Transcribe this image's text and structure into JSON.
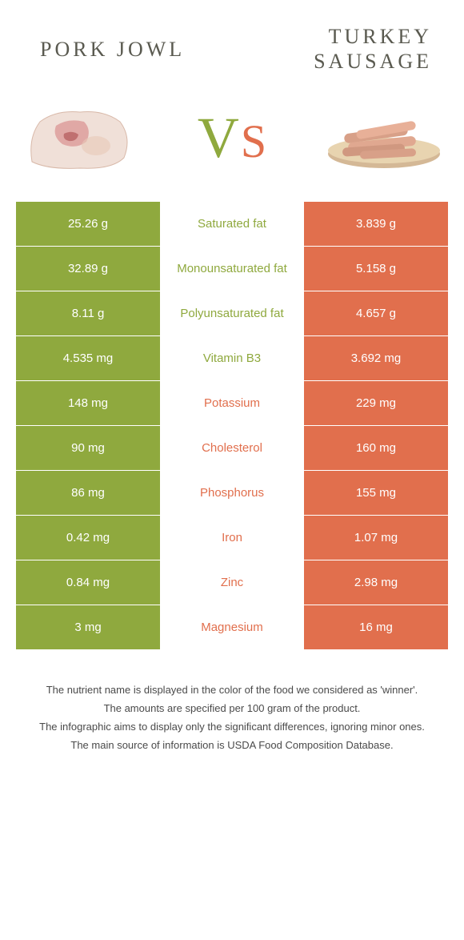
{
  "colors": {
    "green": "#8fa93e",
    "orange": "#e16f4d",
    "title": "#5a5a50",
    "footer_text": "#4a4a4a",
    "background": "#ffffff"
  },
  "header": {
    "left_title": "PORK JOWL",
    "right_title_line1": "TURKEY",
    "right_title_line2": "SAUSAGE",
    "vs_v": "V",
    "vs_s": "S"
  },
  "images": {
    "left_alt": "pork-jowl-image",
    "right_alt": "turkey-sausage-image"
  },
  "rows": [
    {
      "nutrient": "Saturated fat",
      "left": "25.26 g",
      "right": "3.839 g",
      "winner": "left"
    },
    {
      "nutrient": "Monounsaturated fat",
      "left": "32.89 g",
      "right": "5.158 g",
      "winner": "left"
    },
    {
      "nutrient": "Polyunsaturated fat",
      "left": "8.11 g",
      "right": "4.657 g",
      "winner": "left"
    },
    {
      "nutrient": "Vitamin B3",
      "left": "4.535 mg",
      "right": "3.692 mg",
      "winner": "left"
    },
    {
      "nutrient": "Potassium",
      "left": "148 mg",
      "right": "229 mg",
      "winner": "right"
    },
    {
      "nutrient": "Cholesterol",
      "left": "90 mg",
      "right": "160 mg",
      "winner": "right"
    },
    {
      "nutrient": "Phosphorus",
      "left": "86 mg",
      "right": "155 mg",
      "winner": "right"
    },
    {
      "nutrient": "Iron",
      "left": "0.42 mg",
      "right": "1.07 mg",
      "winner": "right"
    },
    {
      "nutrient": "Zinc",
      "left": "0.84 mg",
      "right": "2.98 mg",
      "winner": "right"
    },
    {
      "nutrient": "Magnesium",
      "left": "3 mg",
      "right": "16 mg",
      "winner": "right"
    }
  ],
  "footer": {
    "line1": "The nutrient name is displayed in the color of the food we considered as 'winner'.",
    "line2": "The amounts are specified per 100 gram of the product.",
    "line3": "The infographic aims to display only the significant differences, ignoring minor ones.",
    "line4": "The main source of information is USDA Food Composition Database."
  },
  "typography": {
    "title_fontsize": 26,
    "title_letter_spacing": 4,
    "vs_v_fontsize": 72,
    "vs_s_fontsize": 58,
    "cell_fontsize": 15,
    "footer_fontsize": 13
  }
}
